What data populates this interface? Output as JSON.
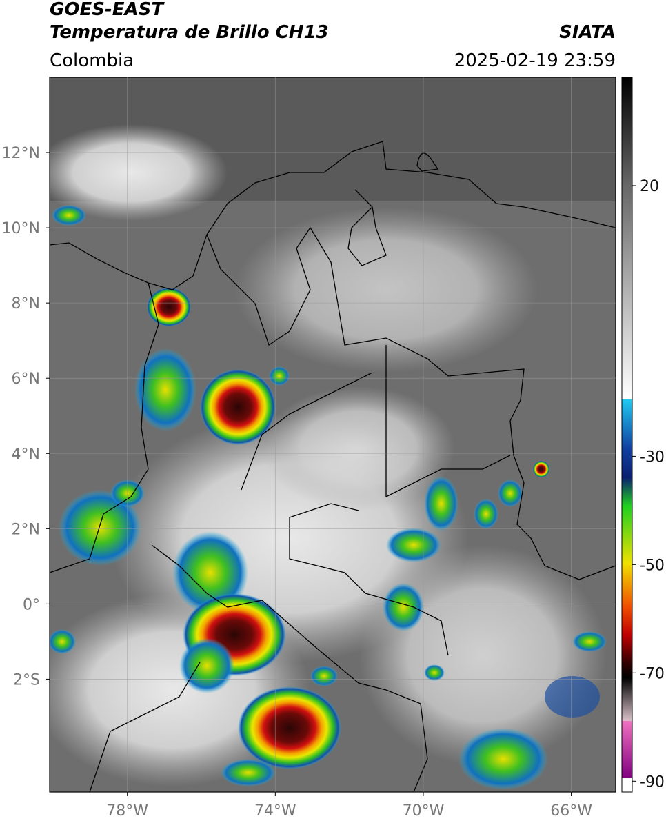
{
  "header": {
    "title": "GOES-EAST",
    "subtitle": "Temperatura de Brillo CH13",
    "source": "SIATA",
    "region": "Colombia",
    "datetime": "2025-02-19 23:59"
  },
  "map": {
    "lon_range": [
      -80.1,
      -64.8
    ],
    "lat_range": [
      -5,
      14
    ],
    "grid": true,
    "lon_ticks": [
      {
        "value": -78,
        "label": "78°W"
      },
      {
        "value": -74,
        "label": "74°W"
      },
      {
        "value": -70,
        "label": "70°W"
      },
      {
        "value": -66,
        "label": "66°W"
      }
    ],
    "lat_ticks": [
      {
        "value": 12,
        "label": "12°N"
      },
      {
        "value": 10,
        "label": "10°N"
      },
      {
        "value": 8,
        "label": "8°N"
      },
      {
        "value": 6,
        "label": "6°N"
      },
      {
        "value": 4,
        "label": "4°N"
      },
      {
        "value": 2,
        "label": "2°N"
      },
      {
        "value": 0,
        "label": "0°"
      },
      {
        "value": -2,
        "label": "2°S"
      }
    ]
  },
  "colorbar": {
    "range": [
      -92,
      40
    ],
    "ticks": [
      20,
      -30,
      -50,
      -70,
      -90
    ]
  }
}
